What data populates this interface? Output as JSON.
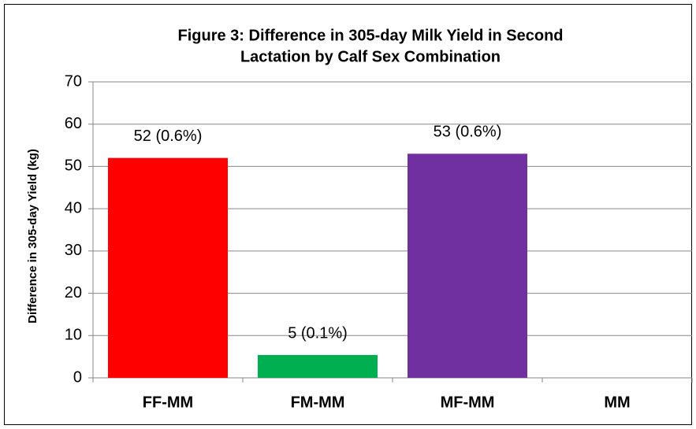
{
  "chart_data": {
    "type": "bar",
    "title": [
      "Figure 3: Difference in 305-day Milk Yield in Second",
      "Lactation by Calf Sex Combination"
    ],
    "y_label": "Difference in 305-day Yield (kg)",
    "categories": [
      "FF-MM",
      "FM-MM",
      "MF-MM",
      "MM"
    ],
    "values": [
      52,
      5.4,
      53,
      null
    ],
    "value_labels": [
      "52 (0.6%)",
      "5 (0.1%)",
      "53 (0.6%)",
      null
    ],
    "colors": [
      "#ff0000",
      "#00b050",
      "#7030a0",
      "#7030a0"
    ],
    "ylim": [
      0,
      70
    ],
    "yticks": [
      0,
      10,
      20,
      30,
      40,
      50,
      60,
      70
    ],
    "grid": true
  }
}
